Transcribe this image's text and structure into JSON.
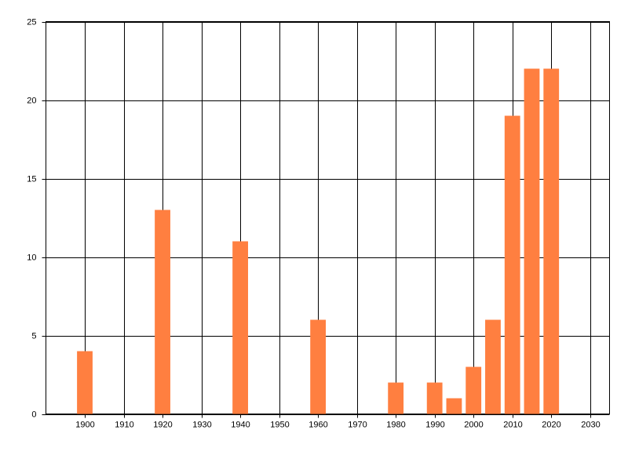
{
  "chart_data": {
    "type": "bar",
    "x": [
      1900,
      1920,
      1940,
      1960,
      1980,
      1990,
      1995,
      2000,
      2005,
      2010,
      2015,
      2020
    ],
    "values": [
      4,
      13,
      11,
      6,
      2,
      2,
      1,
      3,
      6,
      19,
      22,
      22
    ],
    "color": "#ff7f40",
    "xlim": [
      1890,
      2035
    ],
    "xticks": [
      1900,
      1910,
      1920,
      1930,
      1940,
      1950,
      1960,
      1970,
      1980,
      1990,
      2000,
      2010,
      2020,
      2030
    ],
    "ylim": [
      0,
      25
    ],
    "yticks": [
      0,
      5,
      10,
      15,
      20,
      25
    ],
    "grid": true
  }
}
